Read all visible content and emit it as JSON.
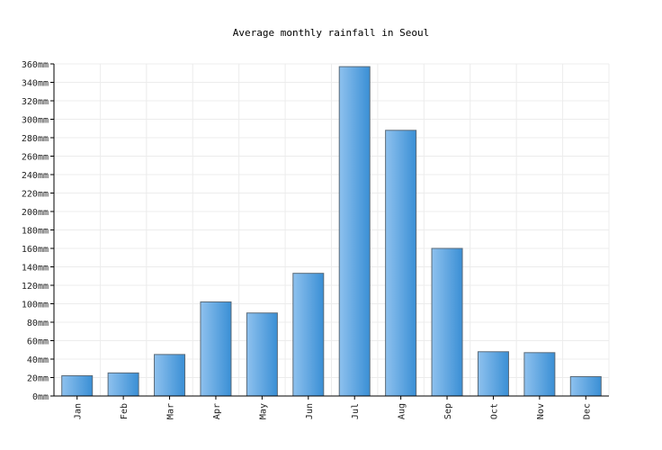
{
  "chart_data": {
    "type": "bar",
    "title": "Average monthly rainfall in Seoul",
    "xlabel": "",
    "ylabel": "",
    "categories": [
      "Jan",
      "Feb",
      "Mar",
      "Apr",
      "May",
      "Jun",
      "Jul",
      "Aug",
      "Sep",
      "Oct",
      "Nov",
      "Dec"
    ],
    "series": [
      {
        "values": [
          22,
          25,
          45,
          102,
          90,
          133,
          357,
          288,
          160,
          48,
          47,
          21
        ]
      }
    ],
    "ylim": [
      0,
      360
    ],
    "ytick_step": 20,
    "ytick_suffix": "mm",
    "grid": true,
    "legend": "none",
    "colors": {
      "bar_light": "#8ec1ee",
      "bar_dark": "#3a8fd5",
      "bar_border": "#5a6a78",
      "grid": "#ececec",
      "axis": "#000000"
    }
  }
}
